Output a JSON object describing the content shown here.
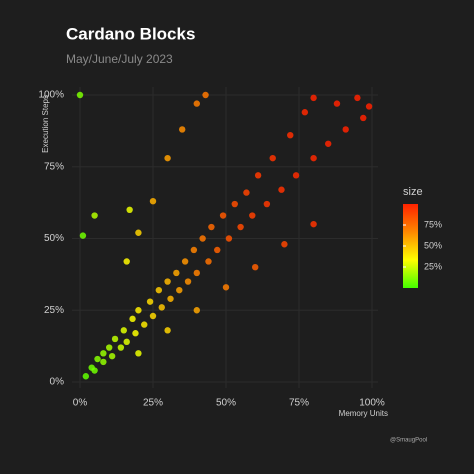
{
  "chart_data": {
    "type": "scatter",
    "title": "Cardano Blocks",
    "subtitle": "May/June/July 2023",
    "x_label": "Memory Units",
    "y_label": "Execution Steps",
    "caption": "@SmaugPool",
    "legend_title": "size",
    "xlim": [
      0,
      100
    ],
    "ylim": [
      0,
      100
    ],
    "xticks": [
      {
        "value": 0,
        "label": "0%"
      },
      {
        "value": 25,
        "label": "25%"
      },
      {
        "value": 50,
        "label": "50%"
      },
      {
        "value": 75,
        "label": "75%"
      },
      {
        "value": 100,
        "label": "100%"
      }
    ],
    "yticks": [
      {
        "value": 0,
        "label": "0%"
      },
      {
        "value": 25,
        "label": "25%"
      },
      {
        "value": 50,
        "label": "50%"
      },
      {
        "value": 75,
        "label": "75%"
      },
      {
        "value": 100,
        "label": "100%"
      }
    ],
    "colorlim": [
      0,
      100
    ],
    "colorticks": [
      {
        "value": 25,
        "label": "25%"
      },
      {
        "value": 50,
        "label": "50%"
      },
      {
        "value": 75,
        "label": "75%"
      }
    ],
    "colorscale": [
      "#44ff00",
      "#ffff00",
      "#ff8800",
      "#ff2200"
    ],
    "grid": true,
    "x": [
      2,
      4,
      5,
      6,
      8,
      8,
      10,
      11,
      12,
      14,
      15,
      16,
      18,
      19,
      20,
      22,
      24,
      25,
      27,
      28,
      30,
      31,
      33,
      34,
      36,
      37,
      39,
      40,
      42,
      44,
      45,
      47,
      49,
      51,
      53,
      55,
      57,
      59,
      61,
      64,
      66,
      69,
      72,
      74,
      77,
      80,
      80,
      85,
      88,
      91,
      95,
      97,
      99,
      20,
      30,
      40,
      50,
      60,
      70,
      80,
      16,
      20,
      25,
      30,
      35,
      40,
      43,
      0,
      1,
      5,
      17
    ],
    "y": [
      2,
      5,
      4,
      8,
      7,
      10,
      12,
      9,
      15,
      12,
      18,
      14,
      22,
      17,
      25,
      20,
      28,
      23,
      32,
      26,
      35,
      29,
      38,
      32,
      42,
      35,
      46,
      38,
      50,
      42,
      54,
      46,
      58,
      50,
      62,
      54,
      66,
      58,
      72,
      62,
      78,
      67,
      86,
      72,
      94,
      78,
      99,
      83,
      97,
      88,
      99,
      92,
      96,
      10,
      18,
      25,
      33,
      40,
      48,
      55,
      42,
      52,
      63,
      78,
      88,
      97,
      100,
      100,
      51,
      58,
      60
    ],
    "size": [
      5,
      8,
      8,
      12,
      14,
      15,
      18,
      18,
      22,
      24,
      28,
      28,
      33,
      33,
      38,
      39,
      43,
      44,
      48,
      49,
      53,
      54,
      58,
      59,
      63,
      64,
      68,
      69,
      72,
      74,
      77,
      79,
      82,
      84,
      86,
      87,
      89,
      90,
      92,
      93,
      94,
      95,
      96,
      97,
      98,
      98,
      99,
      99,
      100,
      100,
      100,
      100,
      100,
      30,
      45,
      58,
      70,
      80,
      88,
      94,
      35,
      45,
      55,
      60,
      65,
      70,
      72,
      10,
      8,
      20,
      30
    ]
  }
}
